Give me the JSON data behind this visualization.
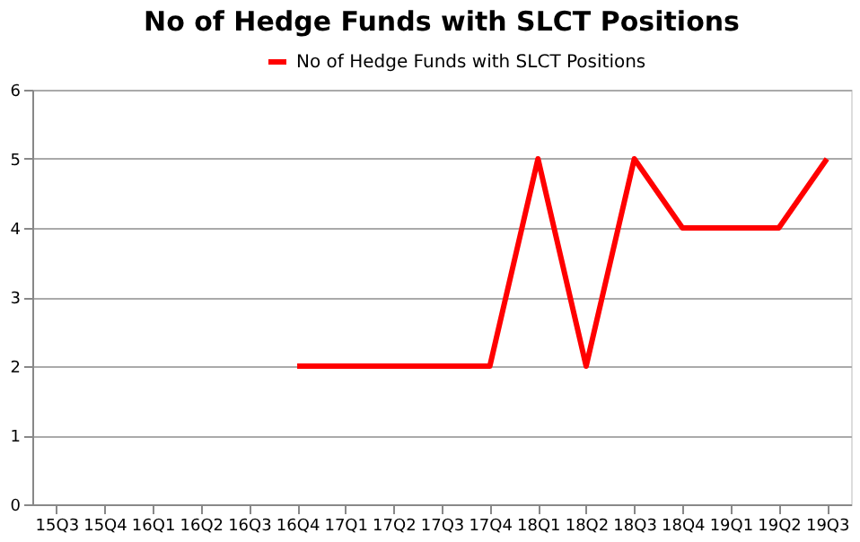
{
  "chart_data": {
    "type": "line",
    "title": "No of Hedge Funds with SLCT Positions",
    "categories": [
      "15Q3",
      "15Q4",
      "16Q1",
      "16Q2",
      "16Q3",
      "16Q4",
      "17Q1",
      "17Q2",
      "17Q3",
      "17Q4",
      "18Q1",
      "18Q2",
      "18Q3",
      "18Q4",
      "19Q1",
      "19Q2",
      "19Q3"
    ],
    "series": [
      {
        "name": "No of Hedge Funds with SLCT Positions",
        "color": "#ff0000",
        "values": [
          null,
          null,
          null,
          null,
          null,
          2,
          2,
          2,
          2,
          2,
          5,
          2,
          5,
          4,
          4,
          4,
          5
        ]
      }
    ],
    "ylim": [
      0,
      6
    ],
    "yticks": [
      0,
      1,
      2,
      3,
      4,
      5,
      6
    ],
    "grid": "y",
    "legend": "top",
    "marker": "none",
    "line_style": "solid"
  }
}
